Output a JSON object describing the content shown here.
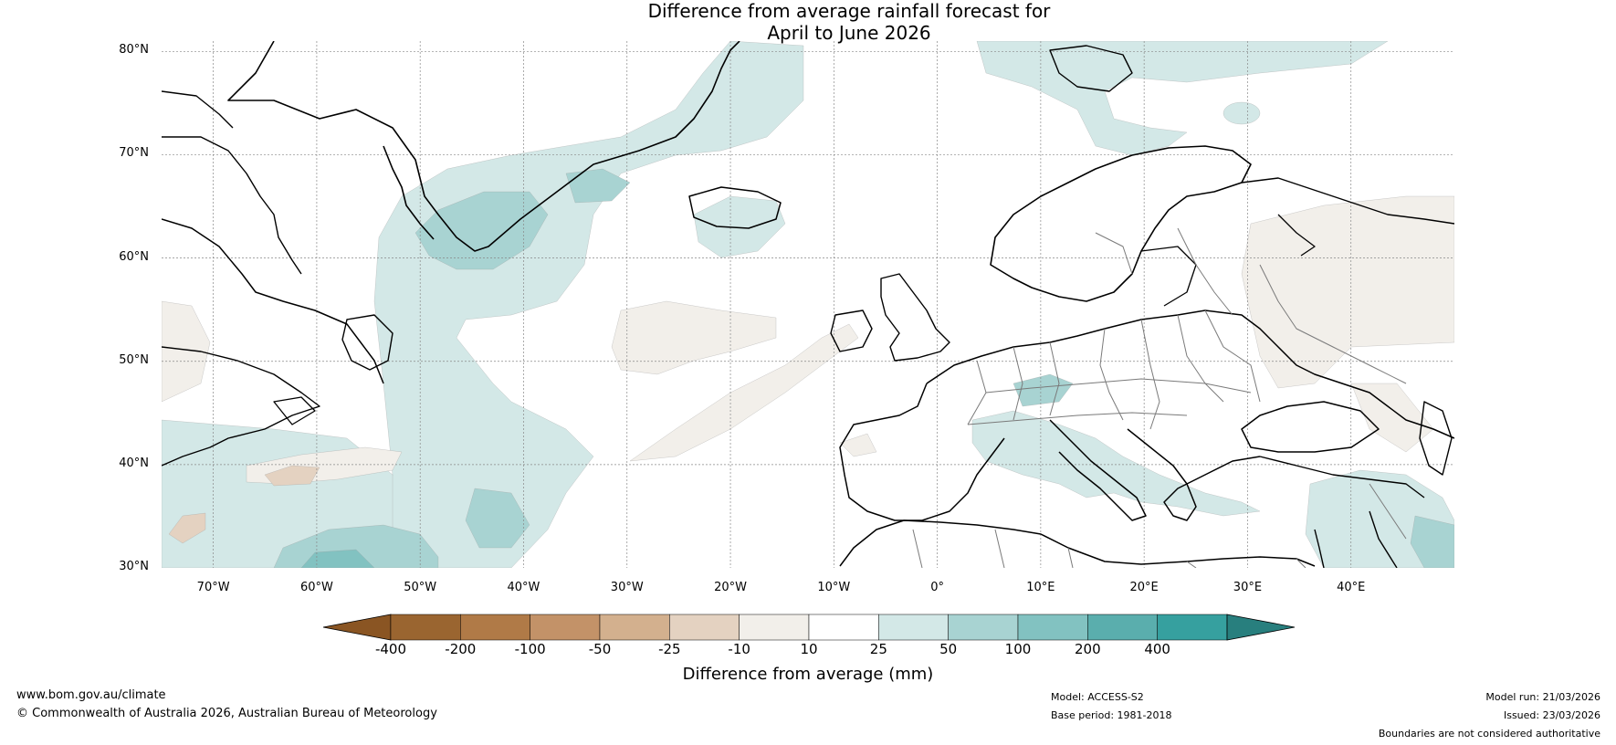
{
  "title": {
    "line1": "Difference from average rainfall forecast for",
    "line2": "April to June 2026"
  },
  "map": {
    "lat_labels": [
      "80°N",
      "70°N",
      "60°N",
      "50°N",
      "40°N",
      "30°N"
    ],
    "lon_labels": [
      "70°W",
      "60°W",
      "50°W",
      "40°W",
      "30°W",
      "20°W",
      "10°W",
      "0°",
      "10°E",
      "20°E",
      "30°E",
      "40°E"
    ],
    "lat_range": [
      30,
      81
    ],
    "lon_range": [
      -75,
      50
    ],
    "colors": {
      "coast": "#000000",
      "border": "#7a7a7a",
      "grid": "#888888",
      "wet_10_25": "#d3e8e7",
      "wet_25_50": "#a8d3d2",
      "wet_50_100": "#82c2c1",
      "wet_100_200": "#5aaead",
      "dry_10_25": "#f2efea",
      "dry_25_50": "#e4d2c1"
    }
  },
  "colorbar": {
    "title": "Difference from average (mm)",
    "ticks": [
      "-400",
      "-200",
      "-100",
      "-50",
      "-25",
      "-10",
      "10",
      "25",
      "50",
      "100",
      "200",
      "400"
    ],
    "colors": [
      "#9a6530",
      "#b07a47",
      "#c39268",
      "#d3b08e",
      "#e4d2c1",
      "#f2efea",
      "#ffffff",
      "#d3e8e7",
      "#a8d3d2",
      "#82c2c1",
      "#5aaead",
      "#36a09f"
    ],
    "low_extend": "#8a5523",
    "high_extend": "#287f7e"
  },
  "footer": {
    "website": "www.bom.gov.au/climate",
    "copyright": "© Commonwealth of Australia 2026, Australian Bureau of Meteorology",
    "model": "Model: ACCESS-S2",
    "base_period": "Base period: 1981-2018",
    "model_run": "Model run: 21/03/2026",
    "issued": "Issued: 23/03/2026",
    "disclaimer": "Boundaries are not considered authoritative"
  }
}
